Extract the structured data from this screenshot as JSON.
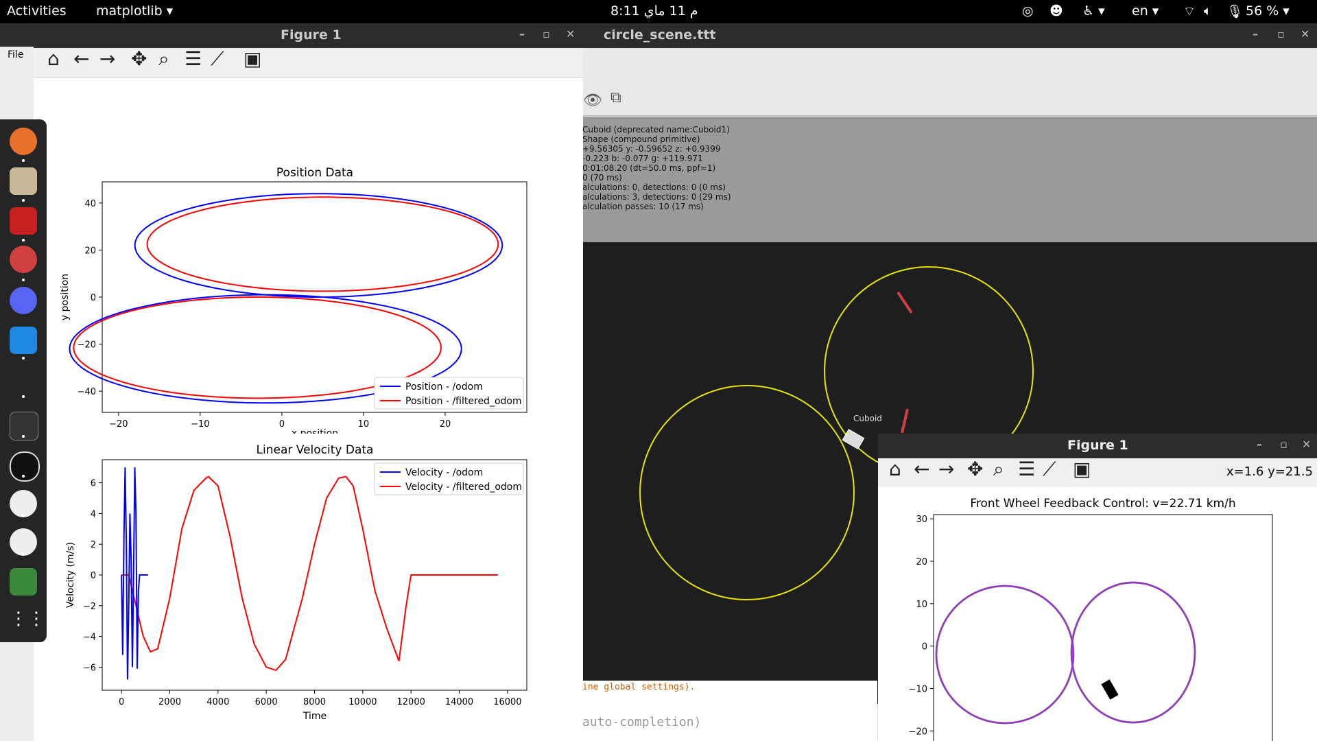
{
  "topbar": {
    "activities": "Activities",
    "app_menu": "matplotlib ▾",
    "clock": "8:11 م   11 ماي",
    "lang": "en ▾",
    "battery": "56 % ▾"
  },
  "left_figure": {
    "title": "Figure 1",
    "menu_file": "File",
    "toolbar": [
      "home-icon",
      "back-icon",
      "forward-icon",
      "pan-icon",
      "zoom-icon",
      "configure-icon",
      "axes-edit-icon",
      "save-icon"
    ]
  },
  "coppelia": {
    "title": "circle_scene.ttt",
    "info_lines": [
      "Cuboid   (deprecated name:Cuboid1)",
      "Shape (compound primitive)",
      "+9.56305   y: -0.59652   z: +0.9399",
      "-0.223   b: -0.077   g: +119.971",
      "0:01:08.20 (dt=50.0 ms, ppf=1)",
      "0 (70 ms)",
      "alculations: 0, detections: 0 (0 ms)",
      "alculations: 3, detections: 0 (29 ms)",
      "alculation passes: 10 (17 ms)"
    ],
    "object_label": "Cuboid",
    "console_line": "ine global settings).",
    "console_input_placeholder": "auto-completion)"
  },
  "right_figure": {
    "title": "Figure 1",
    "coords": "x=1.6 y=21.5"
  },
  "chart_data": [
    {
      "type": "line",
      "title": "Position Data",
      "xlabel": "x position",
      "ylabel": "y position",
      "xlim": [
        -22,
        30
      ],
      "ylim": [
        -49,
        49
      ],
      "xticks": [
        -20,
        -10,
        0,
        10,
        20
      ],
      "yticks": [
        40,
        20,
        0,
        -20,
        -40
      ],
      "legend": "lower-right",
      "series": [
        {
          "name": "Position - /odom",
          "color": "#0000ff",
          "shape": "figure-eight",
          "upper_center": [
            4.5,
            22
          ],
          "upper_radii": [
            22.5,
            22
          ],
          "lower_center": [
            -2,
            -22
          ],
          "lower_radii": [
            24,
            23
          ]
        },
        {
          "name": "Position - /filtered_odom",
          "color": "#ff0000",
          "shape": "figure-eight",
          "upper_center": [
            5,
            22.5
          ],
          "upper_radii": [
            21.5,
            20
          ],
          "lower_center": [
            -3,
            -21.5
          ],
          "lower_radii": [
            22.5,
            21.5
          ]
        }
      ]
    },
    {
      "type": "line",
      "title": "Linear Velocity Data",
      "xlabel": "Time",
      "ylabel": "Velocity (m/s)",
      "xlim": [
        -800,
        16800
      ],
      "ylim": [
        -7.5,
        7.5
      ],
      "xticks": [
        0,
        2000,
        4000,
        6000,
        8000,
        10000,
        12000,
        14000,
        16000
      ],
      "yticks": [
        6,
        4,
        2,
        0,
        -2,
        -4,
        -6
      ],
      "legend": "upper-right",
      "series": [
        {
          "name": "Velocity - /odom",
          "color": "#0000ff",
          "x": [
            0,
            50,
            100,
            150,
            200,
            250,
            300,
            350,
            400,
            450,
            500,
            550,
            600,
            650,
            700,
            750,
            800,
            1100
          ],
          "y": [
            0,
            -5.2,
            2.5,
            7,
            2,
            -6.8,
            -2,
            4,
            1,
            -6,
            0,
            7,
            4,
            -6.1,
            -1,
            0,
            0,
            0
          ]
        },
        {
          "name": "Velocity - /filtered_odom",
          "color": "#ff0000",
          "x": [
            0,
            300,
            600,
            900,
            1200,
            1500,
            2000,
            2500,
            3000,
            3500,
            3600,
            4000,
            4500,
            5000,
            5500,
            6000,
            6400,
            6800,
            7500,
            8000,
            8500,
            9000,
            9300,
            9600,
            10000,
            10500,
            11000,
            11500,
            11800,
            12000,
            13000,
            14000,
            15000,
            15600
          ],
          "y": [
            0,
            0,
            -2,
            -4,
            -5,
            -4.8,
            -1.5,
            3,
            5.5,
            6.3,
            6.4,
            5.8,
            2.5,
            -1.5,
            -4.5,
            -6,
            -6.2,
            -5.5,
            -1.5,
            2,
            5,
            6.3,
            6.4,
            5.8,
            3,
            -1,
            -3.5,
            -5.6,
            -2,
            0,
            0,
            0,
            0,
            0
          ]
        }
      ]
    },
    {
      "type": "line",
      "title": "Front Wheel Feedback Control: v=22.71 km/h",
      "xlabel": "",
      "ylabel": "",
      "ylim": [
        -24,
        31
      ],
      "yticks": [
        30,
        20,
        10,
        0,
        -10,
        -20
      ],
      "series": [
        {
          "color": "#808080",
          "shape": "two-circles"
        },
        {
          "color": "#9b30d0",
          "shape": "two-circles"
        }
      ]
    }
  ]
}
